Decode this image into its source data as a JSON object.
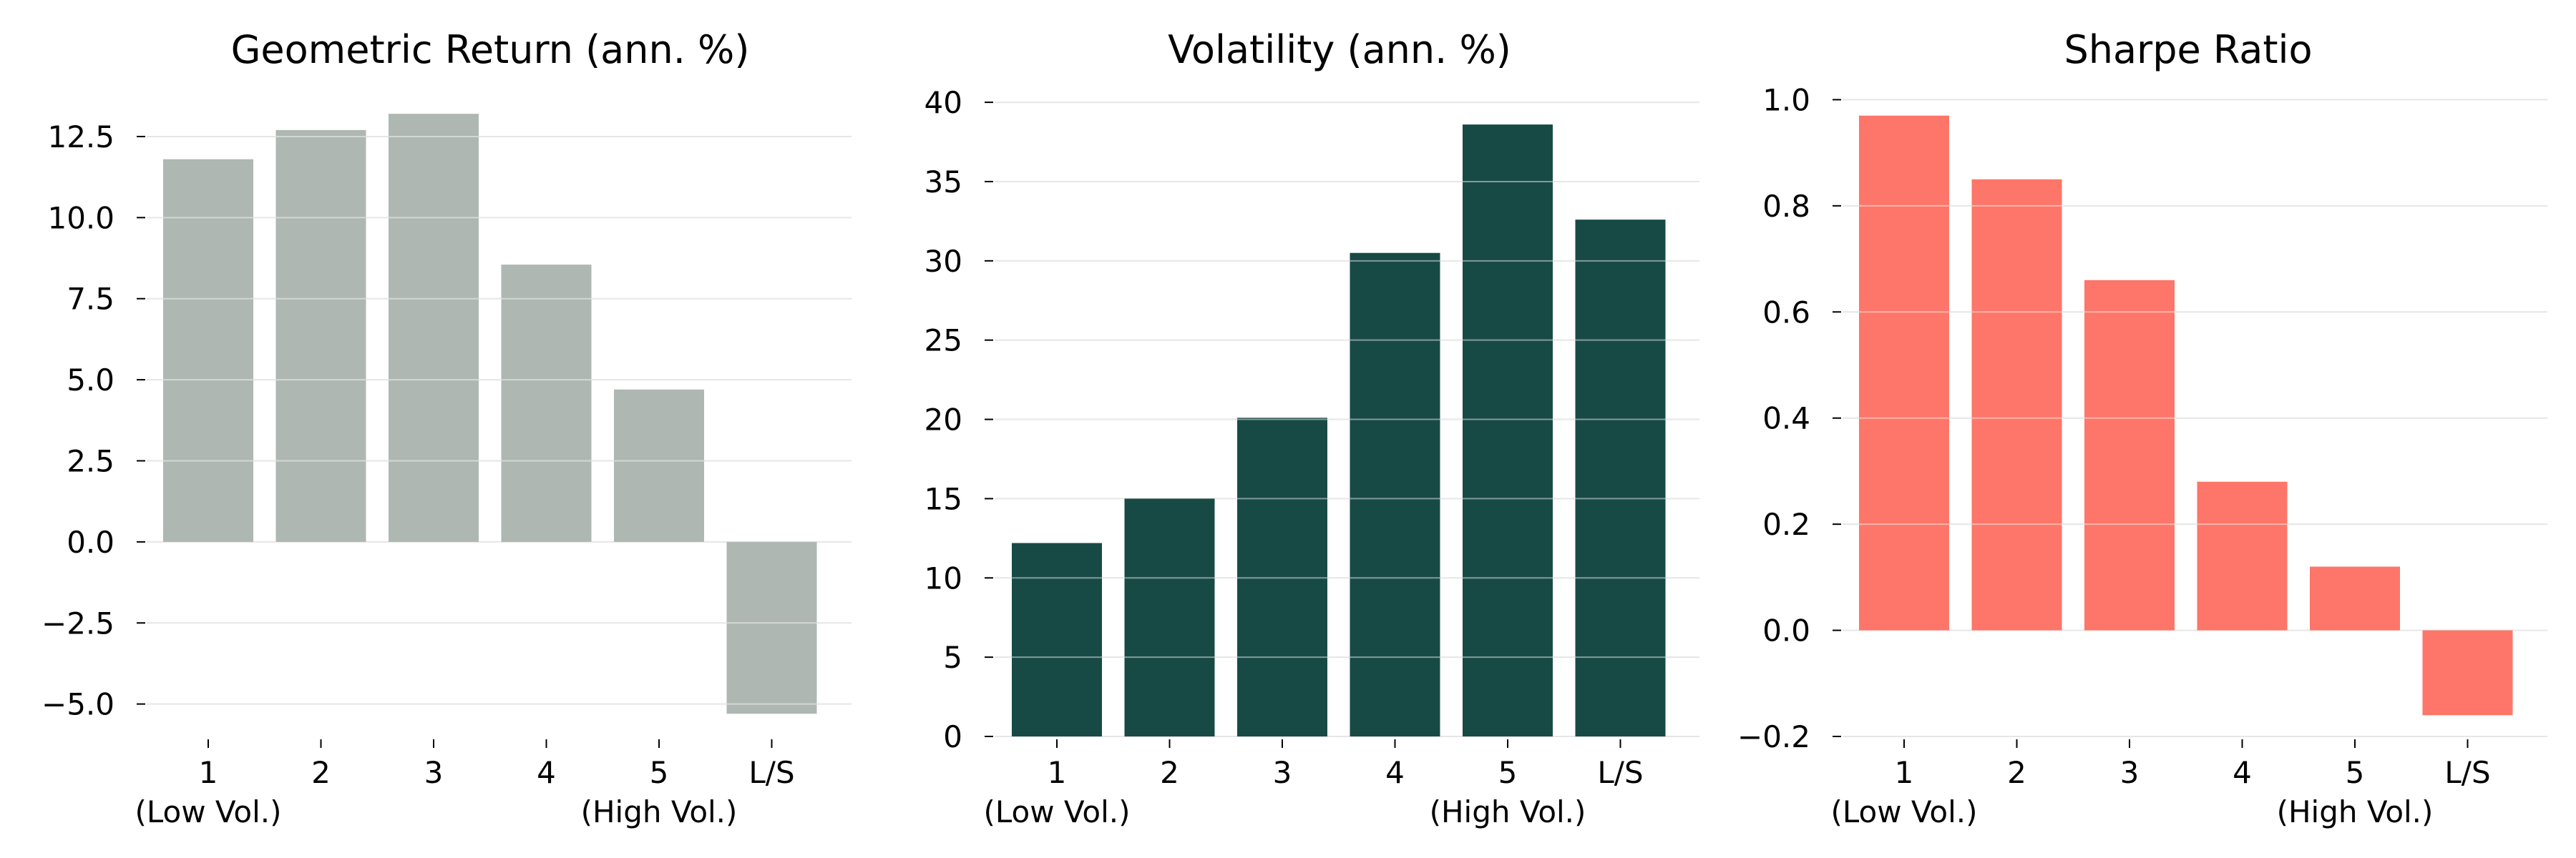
{
  "chart_data": [
    {
      "type": "bar",
      "title": "Geometric Return (ann. %)",
      "categories": [
        "1",
        "2",
        "3",
        "4",
        "5",
        "L/S"
      ],
      "sublabels": [
        "(Low Vol.)",
        "",
        "",
        "",
        "(High Vol.)",
        ""
      ],
      "values": [
        11.8,
        12.7,
        13.2,
        8.55,
        4.7,
        -5.3
      ],
      "ylim": [
        -6.0,
        13.8
      ],
      "yticks": [
        -5.0,
        -2.5,
        0.0,
        2.5,
        5.0,
        7.5,
        10.0,
        12.5
      ],
      "ytick_labels": [
        "−5.0",
        "−2.5",
        "0.0",
        "2.5",
        "5.0",
        "7.5",
        "10.0",
        "12.5"
      ],
      "color": "#afb7b2",
      "grid": true
    },
    {
      "type": "bar",
      "title": "Volatility (ann. %)",
      "categories": [
        "1",
        "2",
        "3",
        "4",
        "5",
        "L/S"
      ],
      "sublabels": [
        "(Low Vol.)",
        "",
        "",
        "",
        "(High Vol.)",
        ""
      ],
      "values": [
        12.2,
        15.0,
        20.1,
        30.5,
        38.6,
        32.6
      ],
      "ylim": [
        0,
        40.5
      ],
      "yticks": [
        0,
        5,
        10,
        15,
        20,
        25,
        30,
        35,
        40
      ],
      "ytick_labels": [
        "0",
        "5",
        "10",
        "15",
        "20",
        "25",
        "30",
        "35",
        "40"
      ],
      "color": "#184a45",
      "grid": true
    },
    {
      "type": "bar",
      "title": "Sharpe Ratio",
      "categories": [
        "1",
        "2",
        "3",
        "4",
        "5",
        "L/S"
      ],
      "sublabels": [
        "(Low Vol.)",
        "",
        "",
        "",
        "(High Vol.)",
        ""
      ],
      "values": [
        0.97,
        0.85,
        0.66,
        0.28,
        0.12,
        -0.16
      ],
      "ylim": [
        -0.2,
        1.01
      ],
      "yticks": [
        -0.2,
        0.0,
        0.2,
        0.4,
        0.6,
        0.8,
        1.0
      ],
      "ytick_labels": [
        "−0.2",
        "0.0",
        "0.2",
        "0.4",
        "0.6",
        "0.8",
        "1.0"
      ],
      "color": "#fd7669",
      "grid": true
    }
  ]
}
